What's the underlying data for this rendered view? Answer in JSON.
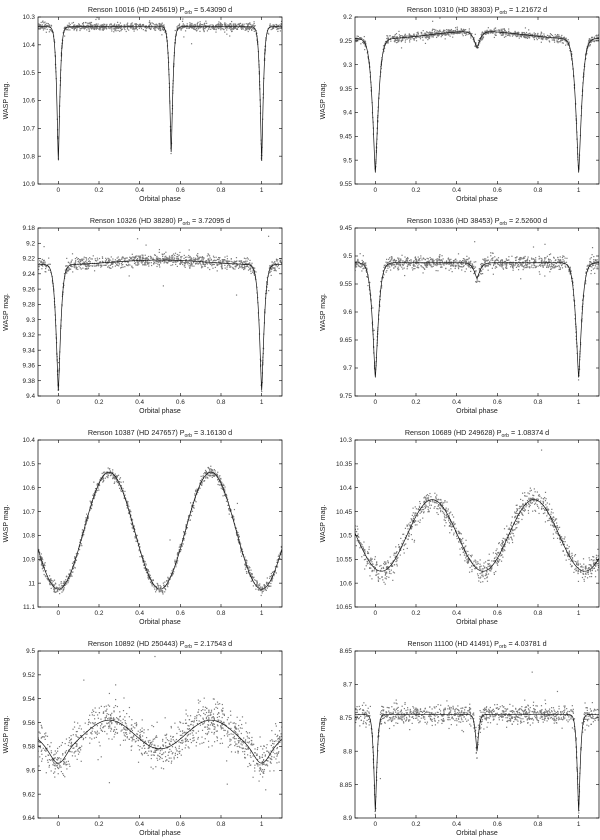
{
  "chart_data": [
    {
      "type": "scatter",
      "title": "Renson 10016 (HD 245619) P",
      "title_sub": "orb",
      "title_tail": " = 5.43090 d",
      "xlabel": "Orbital phase",
      "ylabel": "WASP mag.",
      "xlim": [
        -0.1,
        1.1
      ],
      "ylim": [
        10.9,
        10.3
      ],
      "yticks": [
        "10.3",
        "10.4",
        "10.5",
        "10.6",
        "10.7",
        "10.8",
        "10.9"
      ],
      "ytick_values": [
        10.3,
        10.4,
        10.5,
        10.6,
        10.7,
        10.8,
        10.9
      ],
      "xticks": [
        "0",
        "0.2",
        "0.4",
        "0.6",
        "0.8",
        "1"
      ],
      "xtick_values": [
        0,
        0.2,
        0.4,
        0.6,
        0.8,
        1
      ],
      "model": {
        "base": 10.335,
        "eclipses": [
          {
            "phase": 0.0,
            "depth": 0.48,
            "width": 0.011,
            "shape": "v"
          },
          {
            "phase": 0.555,
            "depth": 0.455,
            "width": 0.011,
            "shape": "v"
          },
          {
            "phase": 1.0,
            "depth": 0.48,
            "width": 0.011,
            "shape": "v"
          }
        ],
        "wave": {
          "amp": 0.0,
          "period": 0.5,
          "offset": 0
        }
      },
      "scatter_sigma": 0.007
    },
    {
      "type": "scatter",
      "title": "Renson 10310 (HD 38303) P",
      "title_sub": "orb",
      "title_tail": " = 1.21672 d",
      "xlabel": "Orbital phase",
      "ylabel": "WASP mag.",
      "xlim": [
        -0.1,
        1.1
      ],
      "ylim": [
        9.55,
        9.2
      ],
      "yticks": [
        "9.2",
        "9.25",
        "9.3",
        "9.35",
        "9.4",
        "9.45",
        "9.5",
        "9.55"
      ],
      "ytick_values": [
        9.2,
        9.25,
        9.3,
        9.35,
        9.4,
        9.45,
        9.5,
        9.55
      ],
      "xticks": [
        "0",
        "0.2",
        "0.4",
        "0.6",
        "0.8",
        "1"
      ],
      "xtick_values": [
        0,
        0.2,
        0.4,
        0.6,
        0.8,
        1
      ],
      "model": {
        "base": 9.238,
        "eclipses": [
          {
            "phase": 0.0,
            "depth": 0.28,
            "width": 0.02,
            "shape": "v"
          },
          {
            "phase": 0.5,
            "depth": 0.035,
            "width": 0.02,
            "shape": "v"
          },
          {
            "phase": 1.0,
            "depth": 0.28,
            "width": 0.02,
            "shape": "v"
          }
        ],
        "wave": {
          "amp": 0.008,
          "period": 1.0,
          "offset": 0
        }
      },
      "scatter_sigma": 0.004
    },
    {
      "type": "scatter",
      "title": "Renson 10326 (HD 38280) P",
      "title_sub": "orb",
      "title_tail": " = 3.72095 d",
      "xlabel": "Orbital phase",
      "ylabel": "WASP mag.",
      "xlim": [
        -0.1,
        1.1
      ],
      "ylim": [
        9.4,
        9.18
      ],
      "yticks": [
        "9.18",
        "9.2",
        "9.22",
        "9.24",
        "9.26",
        "9.28",
        "9.3",
        "9.32",
        "9.34",
        "9.36",
        "9.38",
        "9.4"
      ],
      "ytick_values": [
        9.18,
        9.2,
        9.22,
        9.24,
        9.26,
        9.28,
        9.3,
        9.32,
        9.34,
        9.36,
        9.38,
        9.4
      ],
      "xticks": [
        "0",
        "0.2",
        "0.4",
        "0.6",
        "0.8",
        "1"
      ],
      "xtick_values": [
        0,
        0.2,
        0.4,
        0.6,
        0.8,
        1
      ],
      "model": {
        "base": 9.225,
        "eclipses": [
          {
            "phase": 0.0,
            "depth": 0.165,
            "width": 0.016,
            "shape": "v"
          },
          {
            "phase": 1.0,
            "depth": 0.165,
            "width": 0.016,
            "shape": "v"
          }
        ],
        "wave": {
          "amp": 0.003,
          "period": 1.0,
          "offset": 0
        }
      },
      "scatter_sigma": 0.004
    },
    {
      "type": "scatter",
      "title": "Renson 10336 (HD 38453) P",
      "title_sub": "orb",
      "title_tail": " = 2.52600 d",
      "xlabel": "Orbital phase",
      "ylabel": "WASP mag.",
      "xlim": [
        -0.1,
        1.1
      ],
      "ylim": [
        9.75,
        9.45
      ],
      "yticks": [
        "9.45",
        "9.5",
        "9.55",
        "9.6",
        "9.65",
        "9.7",
        "9.75"
      ],
      "ytick_values": [
        9.45,
        9.5,
        9.55,
        9.6,
        9.65,
        9.7,
        9.75
      ],
      "xticks": [
        "0",
        "0.2",
        "0.4",
        "0.6",
        "0.8",
        "1"
      ],
      "xtick_values": [
        0,
        0.2,
        0.4,
        0.6,
        0.8,
        1
      ],
      "model": {
        "base": 9.512,
        "eclipses": [
          {
            "phase": 0.0,
            "depth": 0.205,
            "width": 0.02,
            "shape": "v"
          },
          {
            "phase": 0.5,
            "depth": 0.028,
            "width": 0.02,
            "shape": "v"
          },
          {
            "phase": 1.0,
            "depth": 0.205,
            "width": 0.02,
            "shape": "v"
          }
        ],
        "wave": {
          "amp": 0.0,
          "period": 1.0,
          "offset": 0
        }
      },
      "scatter_sigma": 0.006
    },
    {
      "type": "scatter",
      "title": "Renson 10387 (HD 247657) P",
      "title_sub": "orb",
      "title_tail": " = 3.16130 d",
      "xlabel": "Orbital phase",
      "ylabel": "WASP mag.",
      "xlim": [
        -0.1,
        1.1
      ],
      "ylim": [
        11.1,
        10.4
      ],
      "yticks": [
        "10.4",
        "10.5",
        "10.6",
        "10.7",
        "10.8",
        "10.9",
        "11",
        "11.1"
      ],
      "ytick_values": [
        10.4,
        10.5,
        10.6,
        10.7,
        10.8,
        10.9,
        11.0,
        11.1
      ],
      "xticks": [
        "0",
        "0.2",
        "0.4",
        "0.6",
        "0.8",
        "1"
      ],
      "xtick_values": [
        0,
        0.2,
        0.4,
        0.6,
        0.8,
        1
      ],
      "model": {
        "base": 10.78,
        "eclipses": [],
        "wave": {
          "amp": 0.245,
          "period": 0.5,
          "offset": 0
        }
      },
      "scatter_sigma": 0.012
    },
    {
      "type": "scatter",
      "title": "Renson 10689 (HD 249628) P",
      "title_sub": "orb",
      "title_tail": " = 1.08374 d",
      "xlabel": "Orbital phase",
      "ylabel": "WASP mag.",
      "xlim": [
        -0.1,
        1.1
      ],
      "ylim": [
        10.65,
        10.3
      ],
      "yticks": [
        "10.3",
        "10.35",
        "10.4",
        "10.45",
        "10.5",
        "10.55",
        "10.6",
        "10.65"
      ],
      "ytick_values": [
        10.3,
        10.35,
        10.4,
        10.45,
        10.5,
        10.55,
        10.6,
        10.65
      ],
      "xticks": [
        "0",
        "0.2",
        "0.4",
        "0.6",
        "0.8",
        "1"
      ],
      "xtick_values": [
        0,
        0.2,
        0.4,
        0.6,
        0.8,
        1
      ],
      "model": {
        "base": 10.5,
        "eclipses": [],
        "wave": {
          "amp": 0.075,
          "period": 0.5,
          "offset": 0.03
        }
      },
      "scatter_sigma": 0.012
    },
    {
      "type": "scatter",
      "title": "Renson 10892 (HD 250443) P",
      "title_sub": "orb",
      "title_tail": " = 2.17543 d",
      "xlabel": "Orbital phase",
      "ylabel": "WASP mag.",
      "xlim": [
        -0.1,
        1.1
      ],
      "ylim": [
        9.64,
        9.5
      ],
      "yticks": [
        "9.5",
        "9.52",
        "9.54",
        "9.56",
        "9.58",
        "9.6",
        "9.62",
        "9.64"
      ],
      "ytick_values": [
        9.5,
        9.52,
        9.54,
        9.56,
        9.58,
        9.6,
        9.62,
        9.64
      ],
      "xticks": [
        "0",
        "0.2",
        "0.4",
        "0.6",
        "0.8",
        "1"
      ],
      "xtick_values": [
        0,
        0.2,
        0.4,
        0.6,
        0.8,
        1
      ],
      "model": {
        "base": 9.57,
        "eclipses": [
          {
            "phase": 0.0,
            "depth": 0.012,
            "width": 0.05,
            "shape": "u"
          },
          {
            "phase": 1.0,
            "depth": 0.012,
            "width": 0.05,
            "shape": "u"
          }
        ],
        "wave": {
          "amp": 0.012,
          "period": 0.5,
          "offset": 0
        }
      },
      "scatter_sigma": 0.008
    },
    {
      "type": "scatter",
      "title": "Renson 11100 (HD 41491) P",
      "title_sub": "orb",
      "title_tail": " = 4.03781 d",
      "xlabel": "Orbital phase",
      "ylabel": "WASP mag.",
      "xlim": [
        -0.1,
        1.1
      ],
      "ylim": [
        8.9,
        8.65
      ],
      "yticks": [
        "8.65",
        "8.7",
        "8.75",
        "8.8",
        "8.85",
        "8.9"
      ],
      "ytick_values": [
        8.65,
        8.7,
        8.75,
        8.8,
        8.85,
        8.9
      ],
      "xticks": [
        "0",
        "0.2",
        "0.4",
        "0.6",
        "0.8",
        "1"
      ],
      "xtick_values": [
        0,
        0.2,
        0.4,
        0.6,
        0.8,
        1
      ],
      "model": {
        "base": 8.745,
        "eclipses": [
          {
            "phase": 0.0,
            "depth": 0.145,
            "width": 0.011,
            "shape": "v"
          },
          {
            "phase": 0.5,
            "depth": 0.055,
            "width": 0.011,
            "shape": "v"
          },
          {
            "phase": 1.0,
            "depth": 0.145,
            "width": 0.011,
            "shape": "v"
          }
        ],
        "wave": {
          "amp": 0.0,
          "period": 1.0,
          "offset": 0
        }
      },
      "scatter_sigma": 0.007
    }
  ],
  "colors": {
    "points": "#7a7a7a",
    "model": "#111111",
    "axes": "#000000"
  }
}
